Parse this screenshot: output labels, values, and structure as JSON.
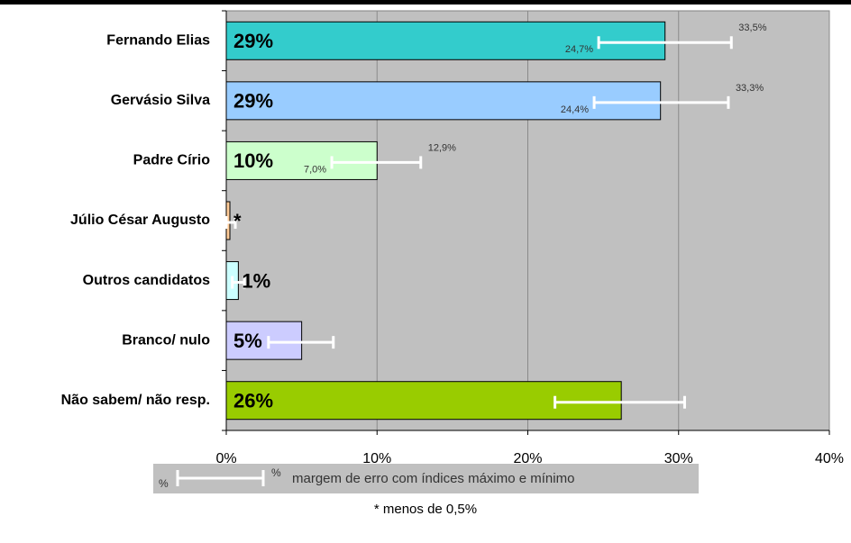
{
  "chart_data": {
    "type": "hbar",
    "categories": [
      "Fernando Elias",
      "Gervásio Silva",
      "Padre Círio",
      "Júlio César Augusto",
      "Outros candidatos",
      "Branco/ nulo",
      "Não sabem/ não resp."
    ],
    "values": [
      29.1,
      28.8,
      10.0,
      0.24,
      0.8,
      5.0,
      26.2
    ],
    "value_labels": [
      "29%",
      "29%",
      "10%",
      "*",
      "1%",
      "5%",
      "26%"
    ],
    "colors": [
      "#33cccc",
      "#99ccff",
      "#ccffcc",
      "#ffcc99",
      "#ccffff",
      "#ccccff",
      "#99cc00"
    ],
    "error_low": [
      24.7,
      24.4,
      7.0,
      0.0,
      0.4,
      2.8,
      21.8
    ],
    "error_high": [
      33.5,
      33.3,
      12.9,
      0.6,
      1.2,
      7.1,
      30.4
    ],
    "error_low_labels": [
      "24,7%",
      "24,4%",
      "7,0%",
      null,
      null,
      null,
      null
    ],
    "error_high_labels": [
      "33,5%",
      "33,3%",
      "12,9%",
      null,
      null,
      null,
      null
    ],
    "xlim": [
      0,
      40
    ],
    "xticks": [
      {
        "value": 0,
        "label": "0%"
      },
      {
        "value": 10,
        "label": "10%"
      },
      {
        "value": 20,
        "label": "20%"
      },
      {
        "value": 30,
        "label": "30%"
      },
      {
        "value": 40,
        "label": "40%"
      }
    ],
    "grid": true,
    "legend": {
      "left_symbol": "%",
      "right_symbol": "%",
      "text": "margem de erro com índices máximo e mínimo"
    },
    "footnote": "* menos de 0,5%"
  }
}
